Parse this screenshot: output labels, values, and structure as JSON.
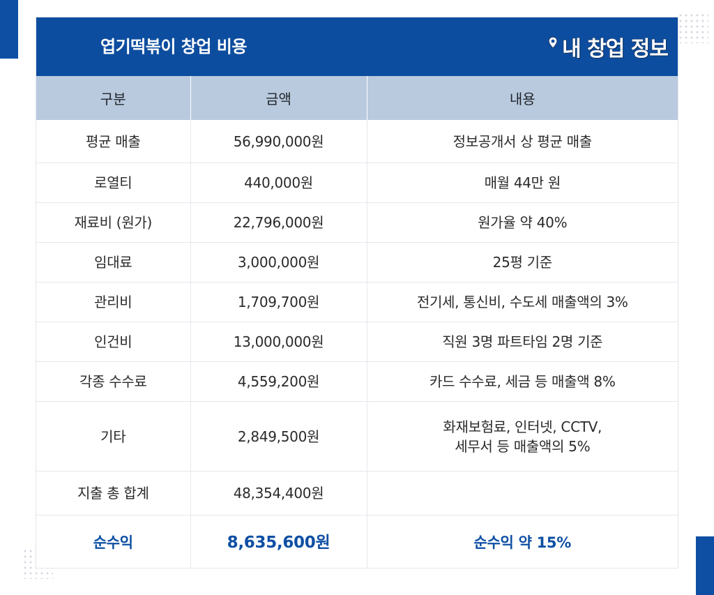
{
  "title": "엽기떡볶이 창업 비용",
  "brand": "내 창업 정보",
  "colors": {
    "header_bg": "#0d4d9f",
    "column_header_bg": "#b9cadf",
    "accent_text": "#0e4fa3"
  },
  "table": {
    "headers": [
      "구분",
      "금액",
      "내용"
    ],
    "rows": [
      {
        "category": "평균 매출",
        "amount": "56,990,000원",
        "note": "정보공개서 상 평균 매출"
      },
      {
        "category": "로열티",
        "amount": "440,000원",
        "note": "매월 44만 원"
      },
      {
        "category": "재료비 (원가)",
        "amount": "22,796,000원",
        "note": "원가율 약 40%"
      },
      {
        "category": "임대료",
        "amount": "3,000,000원",
        "note": "25평 기준"
      },
      {
        "category": "관리비",
        "amount": "1,709,700원",
        "note": "전기세, 통신비, 수도세 매출액의 3%"
      },
      {
        "category": "인건비",
        "amount": "13,000,000원",
        "note": "직원 3명 파트타임 2명 기준"
      },
      {
        "category": "각종 수수료",
        "amount": "4,559,200원",
        "note": "카드 수수료, 세금 등 매출액 8%"
      },
      {
        "category": "기타",
        "amount": "2,849,500원",
        "note_lines": [
          "화재보험료, 인터넷, CCTV,",
          "세무서 등 매출액의 5%"
        ]
      },
      {
        "category": "지출 총 합계",
        "amount": "48,354,400원",
        "note": ""
      }
    ],
    "net": {
      "category": "순수익",
      "amount": "8,635,600원",
      "note": "순수익 약 15%"
    }
  }
}
